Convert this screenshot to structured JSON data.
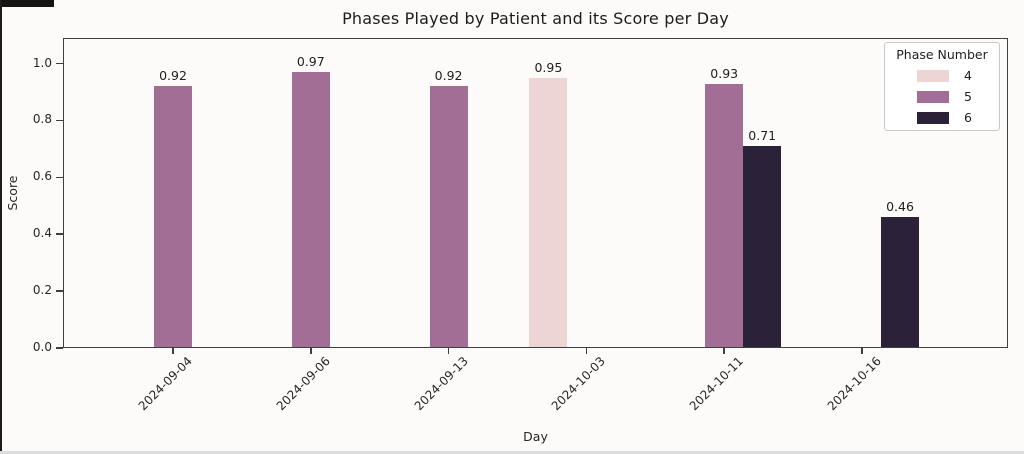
{
  "chart_data": {
    "type": "bar",
    "title": "Phases Played by Patient and its Score per Day",
    "xlabel": "Day",
    "ylabel": "Score",
    "ylim": [
      0,
      1.09
    ],
    "yticks": [
      0.0,
      0.2,
      0.4,
      0.6,
      0.8,
      1.0
    ],
    "grid": false,
    "categories": [
      "2024-09-04",
      "2024-09-06",
      "2024-09-13",
      "2024-10-03",
      "2024-10-11",
      "2024-10-16"
    ],
    "colors": {
      "4": "#ecd5d2",
      "5": "#a26e96",
      "6": "#2b2139"
    },
    "bars": [
      {
        "date": "2024-09-04",
        "phase": "5",
        "value": 0.92
      },
      {
        "date": "2024-09-06",
        "phase": "5",
        "value": 0.97
      },
      {
        "date": "2024-09-13",
        "phase": "5",
        "value": 0.92
      },
      {
        "date": "2024-10-03",
        "phase": "4",
        "value": 0.95
      },
      {
        "date": "2024-10-11",
        "phase": "5",
        "value": 0.93
      },
      {
        "date": "2024-10-11",
        "phase": "6",
        "value": 0.71
      },
      {
        "date": "2024-10-16",
        "phase": "6",
        "value": 0.46
      }
    ],
    "legend": {
      "title": "Phase Number",
      "position": "upper right",
      "entries": [
        {
          "label": "4",
          "color": "#ecd5d2"
        },
        {
          "label": "5",
          "color": "#a26e96"
        },
        {
          "label": "6",
          "color": "#2b2139"
        }
      ]
    }
  }
}
